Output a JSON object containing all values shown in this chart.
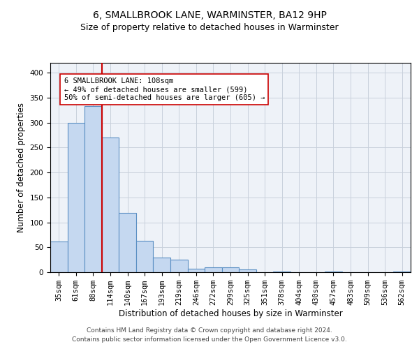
{
  "title1": "6, SMALLBROOK LANE, WARMINSTER, BA12 9HP",
  "title2": "Size of property relative to detached houses in Warminster",
  "xlabel": "Distribution of detached houses by size in Warminster",
  "ylabel": "Number of detached properties",
  "footnote1": "Contains HM Land Registry data © Crown copyright and database right 2024.",
  "footnote2": "Contains public sector information licensed under the Open Government Licence v3.0.",
  "categories": [
    "35sqm",
    "61sqm",
    "88sqm",
    "114sqm",
    "140sqm",
    "167sqm",
    "193sqm",
    "219sqm",
    "246sqm",
    "272sqm",
    "299sqm",
    "325sqm",
    "351sqm",
    "378sqm",
    "404sqm",
    "430sqm",
    "457sqm",
    "483sqm",
    "509sqm",
    "536sqm",
    "562sqm"
  ],
  "values": [
    62,
    300,
    333,
    270,
    119,
    63,
    29,
    25,
    7,
    10,
    10,
    5,
    0,
    2,
    0,
    0,
    2,
    0,
    0,
    0,
    2
  ],
  "bar_color": "#c5d8f0",
  "bar_edge_color": "#5a8fc3",
  "bar_linewidth": 0.8,
  "vline_x": 2.5,
  "vline_color": "#cc0000",
  "annotation_line1": "6 SMALLBROOK LANE: 108sqm",
  "annotation_line2": "← 49% of detached houses are smaller (599)",
  "annotation_line3": "50% of semi-detached houses are larger (605) →",
  "annotation_box_color": "#ffffff",
  "annotation_box_edge": "#cc0000",
  "ylim": [
    0,
    420
  ],
  "yticks": [
    0,
    50,
    100,
    150,
    200,
    250,
    300,
    350,
    400
  ],
  "grid_color": "#c8d0dc",
  "bg_color": "#eef2f8",
  "title1_fontsize": 10,
  "title2_fontsize": 9,
  "xlabel_fontsize": 8.5,
  "ylabel_fontsize": 8.5,
  "tick_fontsize": 7.5,
  "annotation_fontsize": 7.5,
  "footnote_fontsize": 6.5
}
